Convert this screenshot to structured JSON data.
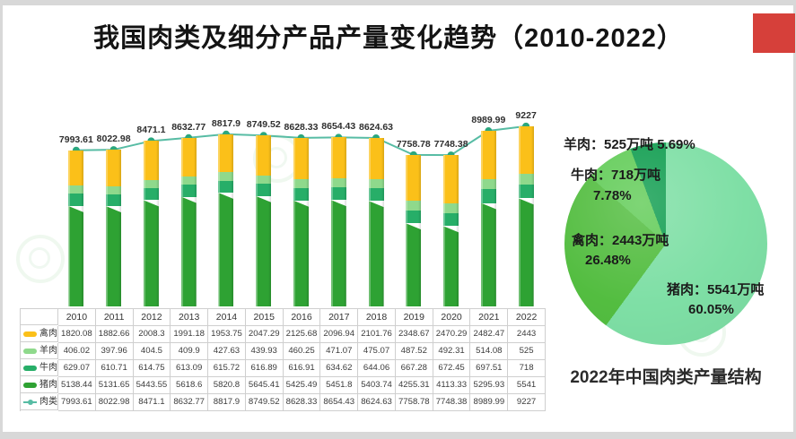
{
  "slide": {
    "title": "我国肉类及细分产品产量变化趋势（2010-2022）",
    "accent_color": "#D6403A"
  },
  "chart_data": [
    {
      "type": "bar",
      "subtype": "stacked-bars-with-total-line",
      "categories": [
        "2010",
        "2011",
        "2012",
        "2013",
        "2014",
        "2015",
        "2016",
        "2017",
        "2018",
        "2019",
        "2020",
        "2021",
        "2022"
      ],
      "series": [
        {
          "name": "禽肉",
          "kind": "bar",
          "color": "#FBC019",
          "values": [
            1820.08,
            1882.66,
            2008.3,
            1991.18,
            1953.75,
            2047.29,
            2125.68,
            2096.94,
            2101.76,
            2348.67,
            2470.29,
            2482.47,
            2443
          ]
        },
        {
          "name": "羊肉",
          "kind": "bar",
          "color": "#8FD98C",
          "values": [
            406.02,
            397.96,
            404.5,
            409.9,
            427.63,
            439.93,
            460.25,
            471.07,
            475.07,
            487.52,
            492.31,
            514.08,
            525
          ]
        },
        {
          "name": "牛肉",
          "kind": "bar",
          "color": "#27AE68",
          "values": [
            629.07,
            610.71,
            614.75,
            613.09,
            615.72,
            616.89,
            616.91,
            634.62,
            644.06,
            667.28,
            672.45,
            697.51,
            718
          ]
        },
        {
          "name": "猪肉",
          "kind": "bar",
          "color": "#2EA233",
          "values": [
            5138.44,
            5131.65,
            5443.55,
            5618.6,
            5820.8,
            5645.41,
            5425.49,
            5451.8,
            5403.74,
            4255.31,
            4113.33,
            5295.93,
            5541
          ]
        },
        {
          "name": "肉类",
          "kind": "line",
          "color": "#57BCA4",
          "values": [
            7993.61,
            8022.98,
            8471.1,
            8632.77,
            8817.9,
            8749.52,
            8628.33,
            8654.43,
            8624.63,
            7758.78,
            7748.38,
            8989.99,
            9227
          ]
        }
      ],
      "stack_order_bottom_to_top": [
        "猪肉",
        "牛肉",
        "羊肉",
        "禽肉"
      ],
      "line_point_labels": true,
      "line_dot_color": "#2CA77D",
      "ylim": [
        0,
        9700
      ],
      "grid": false,
      "legend_position": "table-left"
    },
    {
      "type": "pie",
      "title": "2022年中国肉类产量结构",
      "start_angle_deg": 0,
      "direction": "clockwise",
      "slices": [
        {
          "name": "猪肉",
          "value": 5541,
          "pct": 60.05,
          "label": "猪肉：5541万吨",
          "pct_label": "60.05%",
          "color": "#7EDFA5"
        },
        {
          "name": "禽肉",
          "value": 2443,
          "pct": 26.48,
          "label": "禽肉：2443万吨",
          "pct_label": "26.48%",
          "color": "#53BD40"
        },
        {
          "name": "牛肉",
          "value": 718,
          "pct": 7.78,
          "label": "牛肉：718万吨",
          "pct_label": "7.78%",
          "color": "#62CC58"
        },
        {
          "name": "羊肉",
          "value": 525,
          "pct": 5.69,
          "label": "羊肉：525万吨",
          "pct_label": "5.69%",
          "color": "#129E51"
        }
      ]
    }
  ]
}
